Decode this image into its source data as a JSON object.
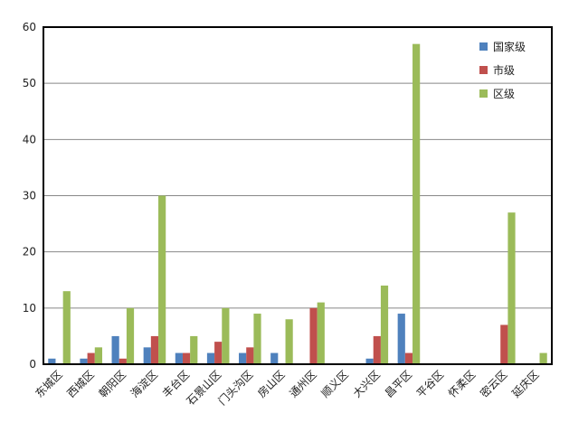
{
  "chart_data": {
    "type": "bar",
    "categories": [
      "东城区",
      "西城区",
      "朝阳区",
      "海淀区",
      "丰台区",
      "石景山区",
      "门头沟区",
      "房山区",
      "通州区",
      "顺义区",
      "大兴区",
      "昌平区",
      "平谷区",
      "怀柔区",
      "密云区",
      "延庆区"
    ],
    "series": [
      {
        "name": "国家级",
        "color": "#4f81bd",
        "values": [
          1,
          1,
          5,
          3,
          2,
          2,
          2,
          2,
          0,
          0,
          1,
          9,
          0,
          0,
          0,
          0
        ]
      },
      {
        "name": "市级",
        "color": "#c0504d",
        "values": [
          0,
          2,
          1,
          5,
          2,
          4,
          3,
          0,
          10,
          0,
          5,
          2,
          0,
          0,
          7,
          0
        ]
      },
      {
        "name": "区级",
        "color": "#9bbb59",
        "values": [
          13,
          3,
          10,
          30,
          5,
          10,
          9,
          8,
          11,
          0,
          14,
          57,
          0,
          0,
          27,
          2
        ]
      }
    ],
    "ylim": [
      0,
      60
    ],
    "yticks": [
      0,
      10,
      20,
      30,
      40,
      50,
      60
    ],
    "grid": true,
    "legend": "top-right"
  }
}
